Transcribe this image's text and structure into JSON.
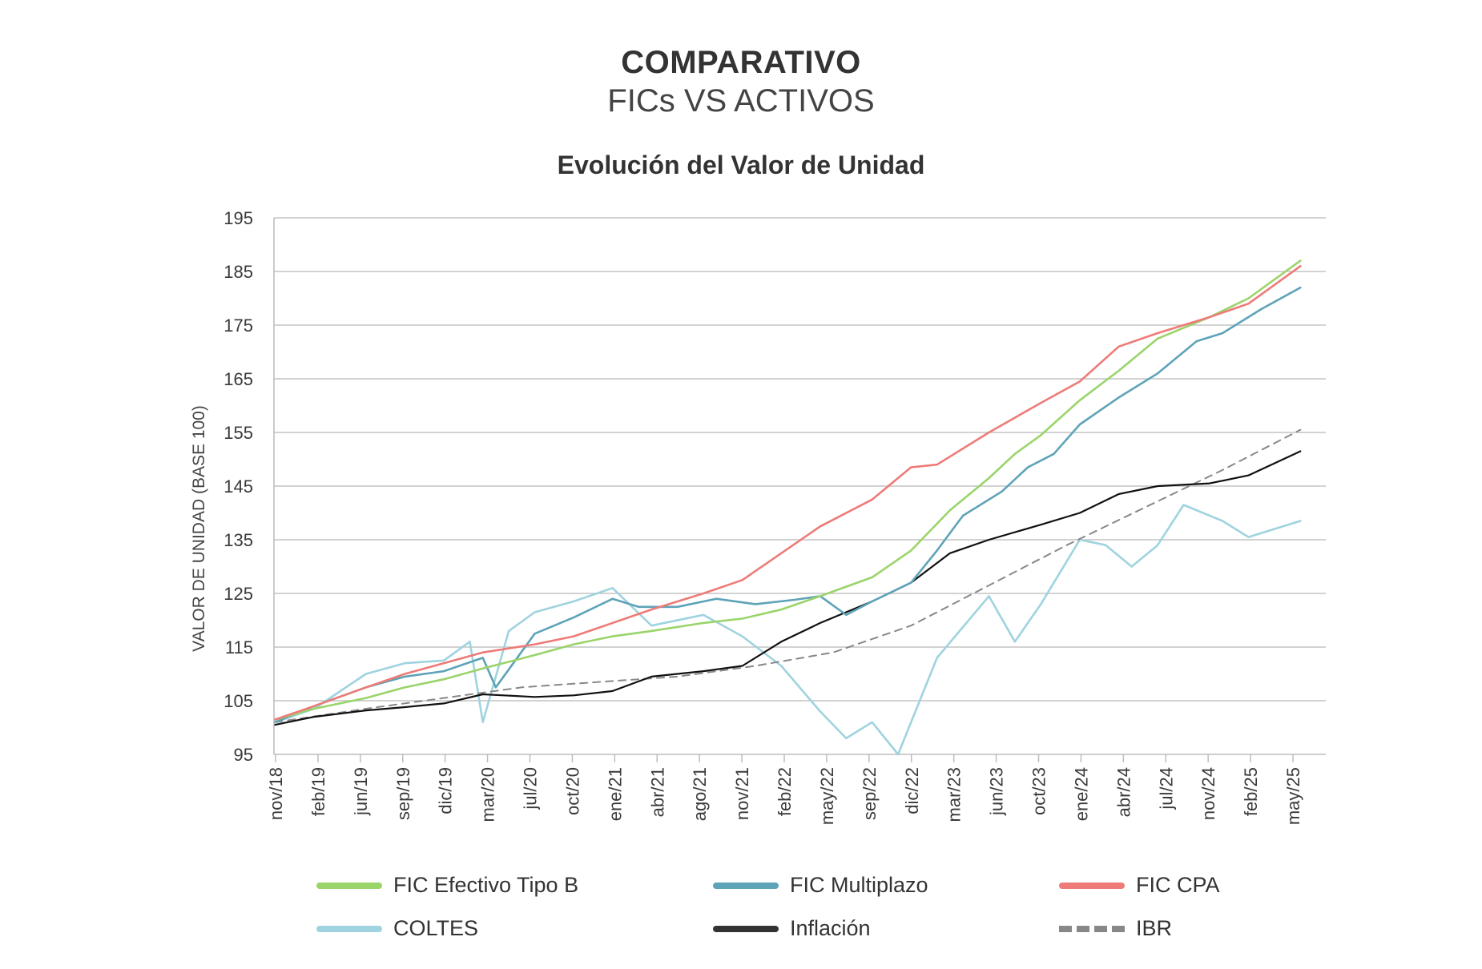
{
  "header": {
    "title": "COMPARATIVO",
    "subtitle": "FICs VS ACTIVOS",
    "chart_title": "Evolución del Valor de Unidad"
  },
  "chart_data": {
    "type": "line",
    "title": "Evolución del Valor de Unidad",
    "ylabel": "VALOR DE UNIDAD (BASE 100)",
    "xlabel": "",
    "ylim": [
      95,
      195
    ],
    "yticks": [
      95,
      105,
      115,
      125,
      135,
      145,
      155,
      165,
      175,
      185,
      195
    ],
    "x_tick_labels": [
      "nov/18",
      "feb/19",
      "jun/19",
      "sep/19",
      "dic/19",
      "mar/20",
      "jul/20",
      "oct/20",
      "ene/21",
      "abr/21",
      "ago/21",
      "nov/21",
      "feb/22",
      "may/22",
      "sep/22",
      "dic/22",
      "mar/23",
      "jun/23",
      "oct/23",
      "ene/24",
      "abr/24",
      "jul/24",
      "nov/24",
      "feb/25",
      "may/25"
    ],
    "grid": "horizontal",
    "legend_position": "bottom",
    "series": [
      {
        "name": "FIC Efectivo Tipo B",
        "color": "#9ad46a",
        "style": "solid",
        "x": [
          "2018-11",
          "2019-02",
          "2019-06",
          "2019-09",
          "2019-12",
          "2020-03",
          "2020-07",
          "2020-10",
          "2021-01",
          "2021-04",
          "2021-08",
          "2021-11",
          "2022-02",
          "2022-05",
          "2022-09",
          "2022-12",
          "2023-01",
          "2023-03",
          "2023-06",
          "2023-08",
          "2023-10",
          "2024-01",
          "2024-04",
          "2024-07",
          "2024-11",
          "2025-02",
          "2025-06"
        ],
        "values": [
          101.5,
          103.5,
          105.5,
          107.5,
          109.0,
          111.0,
          113.5,
          115.5,
          117.0,
          118.0,
          119.5,
          120.3,
          122.0,
          124.5,
          128.0,
          133.0,
          135.5,
          140.5,
          146.5,
          151.0,
          154.5,
          161.0,
          166.5,
          172.5,
          176.5,
          180.0,
          187.0
        ]
      },
      {
        "name": "FIC Multiplazo",
        "color": "#5ea3b8",
        "style": "solid",
        "x": [
          "2018-11",
          "2019-02",
          "2019-06",
          "2019-09",
          "2019-12",
          "2020-03",
          "2020-04",
          "2020-07",
          "2020-10",
          "2021-01",
          "2021-03",
          "2021-06",
          "2021-09",
          "2021-12",
          "2022-03",
          "2022-05",
          "2022-07",
          "2022-09",
          "2022-12",
          "2023-02",
          "2023-04",
          "2023-07",
          "2023-09",
          "2023-11",
          "2024-01",
          "2024-04",
          "2024-07",
          "2024-10",
          "2024-12",
          "2025-03",
          "2025-06"
        ],
        "values": [
          101.0,
          104.0,
          107.5,
          109.5,
          110.5,
          113.0,
          107.5,
          117.5,
          120.5,
          124.0,
          122.5,
          122.5,
          124.0,
          123.0,
          123.8,
          124.5,
          121.0,
          123.5,
          127.0,
          133.0,
          139.5,
          144.0,
          148.5,
          151.0,
          156.5,
          161.5,
          166.0,
          172.0,
          173.5,
          178.0,
          182.0
        ]
      },
      {
        "name": "FIC CPA",
        "color": "#ee7b78",
        "style": "solid",
        "x": [
          "2018-11",
          "2019-02",
          "2019-06",
          "2019-09",
          "2019-12",
          "2020-03",
          "2020-07",
          "2020-10",
          "2021-01",
          "2021-04",
          "2021-08",
          "2021-11",
          "2022-02",
          "2022-05",
          "2022-09",
          "2022-12",
          "2023-02",
          "2023-06",
          "2023-10",
          "2024-01",
          "2024-04",
          "2024-07",
          "2024-11",
          "2025-02",
          "2025-06"
        ],
        "values": [
          101.5,
          104.0,
          107.5,
          110.0,
          112.0,
          114.0,
          115.5,
          117.0,
          119.5,
          122.0,
          125.0,
          127.5,
          132.5,
          137.5,
          142.5,
          148.5,
          149.0,
          155.0,
          160.5,
          164.5,
          171.0,
          173.5,
          176.5,
          179.0,
          186.0
        ]
      },
      {
        "name": "COLTES",
        "color": "#9fd3df",
        "style": "solid",
        "x": [
          "2018-11",
          "2019-02",
          "2019-06",
          "2019-09",
          "2019-12",
          "2020-02",
          "2020-03",
          "2020-05",
          "2020-07",
          "2020-10",
          "2021-01",
          "2021-04",
          "2021-08",
          "2021-11",
          "2022-02",
          "2022-05",
          "2022-07",
          "2022-09",
          "2022-11",
          "2023-02",
          "2023-06",
          "2023-08",
          "2023-10",
          "2024-01",
          "2024-03",
          "2024-05",
          "2024-07",
          "2024-09",
          "2024-12",
          "2025-02",
          "2025-06"
        ],
        "values": [
          101.0,
          103.5,
          110.0,
          112.0,
          112.5,
          116.0,
          101.0,
          118.0,
          121.5,
          123.5,
          126.0,
          119.0,
          121.0,
          117.0,
          111.5,
          103.0,
          98.0,
          101.0,
          95.0,
          113.0,
          124.5,
          116.0,
          123.0,
          135.0,
          134.0,
          130.0,
          134.0,
          141.5,
          138.5,
          135.5,
          138.5
        ]
      },
      {
        "name": "Inflación",
        "color": "#111111",
        "style": "solid",
        "x": [
          "2018-11",
          "2019-02",
          "2019-06",
          "2019-09",
          "2019-12",
          "2020-03",
          "2020-07",
          "2020-10",
          "2021-01",
          "2021-04",
          "2021-08",
          "2021-11",
          "2022-02",
          "2022-05",
          "2022-09",
          "2022-12",
          "2023-03",
          "2023-06",
          "2023-10",
          "2024-01",
          "2024-04",
          "2024-07",
          "2024-11",
          "2025-02",
          "2025-06"
        ],
        "values": [
          100.5,
          102.0,
          103.2,
          103.8,
          104.5,
          106.2,
          105.7,
          106.0,
          106.8,
          109.5,
          110.5,
          111.5,
          116.0,
          119.5,
          123.5,
          127.0,
          132.5,
          135.0,
          137.8,
          140.0,
          143.5,
          145.0,
          145.5,
          147.0,
          151.5
        ]
      },
      {
        "name": "IBR",
        "color": "#888888",
        "style": "dashed",
        "x": [
          "2018-11",
          "2019-06",
          "2019-12",
          "2020-06",
          "2020-12",
          "2021-06",
          "2021-12",
          "2022-06",
          "2022-12",
          "2023-06",
          "2023-12",
          "2024-06",
          "2024-12",
          "2025-06"
        ],
        "values": [
          101.0,
          103.5,
          105.5,
          107.5,
          108.5,
          109.5,
          111.5,
          114.0,
          119.0,
          126.5,
          134.0,
          141.0,
          148.0,
          155.5
        ]
      }
    ]
  },
  "legend": {
    "items": [
      {
        "label": "FIC Efectivo Tipo B",
        "color": "#9ad46a",
        "style": "solid"
      },
      {
        "label": "FIC Multiplazo",
        "color": "#5ea3b8",
        "style": "solid"
      },
      {
        "label": "FIC CPA",
        "color": "#ee7b78",
        "style": "solid"
      },
      {
        "label": "COLTES",
        "color": "#9fd3df",
        "style": "solid"
      },
      {
        "label": "Inflación",
        "color": "#333333",
        "style": "solid"
      },
      {
        "label": "IBR",
        "color": "#888888",
        "style": "dashed"
      }
    ]
  }
}
